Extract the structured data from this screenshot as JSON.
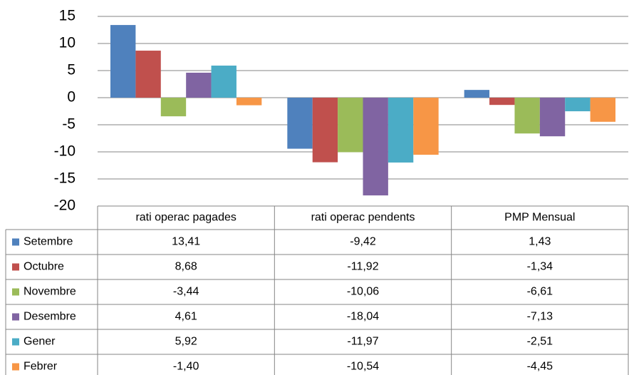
{
  "chart_data": {
    "type": "bar",
    "categories": [
      "rati operac pagades",
      "rati operac pendents",
      "PMP Mensual"
    ],
    "series": [
      {
        "name": "Setembre",
        "color": "#4f81bd",
        "values": [
          13.41,
          -9.42,
          1.43
        ],
        "value_labels": [
          "13,41",
          "-9,42",
          "1,43"
        ]
      },
      {
        "name": "Octubre",
        "color": "#c0504d",
        "values": [
          8.68,
          -11.92,
          -1.34
        ],
        "value_labels": [
          "8,68",
          "-11,92",
          "-1,34"
        ]
      },
      {
        "name": "Novembre",
        "color": "#9bbb59",
        "values": [
          -3.44,
          -10.06,
          -6.61
        ],
        "value_labels": [
          "-3,44",
          "-10,06",
          "-6,61"
        ]
      },
      {
        "name": "Desembre",
        "color": "#8064a2",
        "values": [
          4.61,
          -18.04,
          -7.13
        ],
        "value_labels": [
          "4,61",
          "-18,04",
          "-7,13"
        ]
      },
      {
        "name": "Gener",
        "color": "#4bacc6",
        "values": [
          5.92,
          -11.97,
          -2.51
        ],
        "value_labels": [
          "5,92",
          "-11,97",
          "-2,51"
        ]
      },
      {
        "name": "Febrer",
        "color": "#f79646",
        "values": [
          -1.4,
          -10.54,
          -4.45
        ],
        "value_labels": [
          "-1,40",
          "-10,54",
          "-4,45"
        ]
      }
    ],
    "ylim": [
      -20,
      15
    ],
    "yticks": [
      -20,
      -15,
      -10,
      -5,
      0,
      5,
      10,
      15
    ],
    "grid": true
  }
}
